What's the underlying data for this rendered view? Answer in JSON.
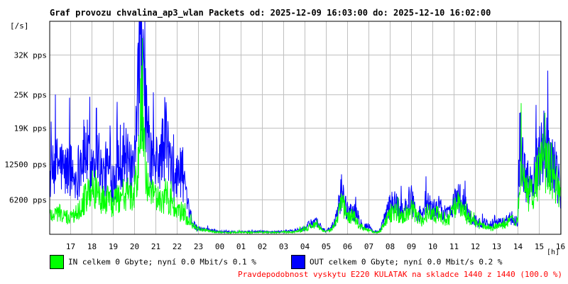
{
  "title": "Graf provozu chvalina_ap3_wlan Packets od: 2025-12-09 16:03:00 do: 2025-12-10 16:02:00",
  "unit_label": "[/s]",
  "hour_unit": "[h]",
  "legend": {
    "in_text": "IN celkem 0 Gbyte; nyní   0.0 Mbit/s 0.1 %",
    "out_text": "OUT celkem 0 Gbyte; nyní   0.0 Mbit/s 0.2 %",
    "in_color": "#00ff00",
    "out_color": "#0000ff"
  },
  "footnote": "Pravdepodobnost vyskytu E220 KULATAK na skladce 1440 z 1440 (100.0 %)",
  "chart_data": {
    "type": "line",
    "ylim": [
      0,
      38000
    ],
    "y_ticks": [
      {
        "value": 6200,
        "label": "6200 pps"
      },
      {
        "value": 12500,
        "label": "12500 pps"
      },
      {
        "value": 19000,
        "label": "19K pps"
      },
      {
        "value": 25000,
        "label": "25K pps"
      },
      {
        "value": 32000,
        "label": "32K pps"
      }
    ],
    "x_range_hours": [
      16.05,
      40.03
    ],
    "x_ticks": [
      {
        "hour": 17,
        "label": "17"
      },
      {
        "hour": 18,
        "label": "18"
      },
      {
        "hour": 19,
        "label": "19"
      },
      {
        "hour": 20,
        "label": "20"
      },
      {
        "hour": 21,
        "label": "21"
      },
      {
        "hour": 22,
        "label": "22"
      },
      {
        "hour": 23,
        "label": "23"
      },
      {
        "hour": 24,
        "label": "00"
      },
      {
        "hour": 25,
        "label": "01"
      },
      {
        "hour": 26,
        "label": "02"
      },
      {
        "hour": 27,
        "label": "03"
      },
      {
        "hour": 28,
        "label": "04"
      },
      {
        "hour": 29,
        "label": "05"
      },
      {
        "hour": 30,
        "label": "06"
      },
      {
        "hour": 31,
        "label": "07"
      },
      {
        "hour": 32,
        "label": "08"
      },
      {
        "hour": 33,
        "label": "09"
      },
      {
        "hour": 34,
        "label": "10"
      },
      {
        "hour": 35,
        "label": "11"
      },
      {
        "hour": 36,
        "label": "12"
      },
      {
        "hour": 37,
        "label": "13"
      },
      {
        "hour": 38,
        "label": "14"
      },
      {
        "hour": 39,
        "label": "15"
      },
      {
        "hour": 40,
        "label": "16"
      }
    ],
    "grid": true,
    "series": [
      {
        "key": "out",
        "color": "#0000ff",
        "x": [
          16.05,
          16.5,
          16.75,
          17.0,
          17.25,
          17.5,
          17.75,
          18.0,
          18.25,
          18.5,
          18.75,
          19.0,
          19.25,
          19.5,
          19.75,
          20.0,
          20.2,
          20.35,
          20.5,
          20.75,
          21.0,
          21.25,
          21.5,
          21.75,
          22.0,
          22.25,
          22.5,
          22.75,
          23.0,
          23.5,
          24.0,
          24.5,
          25.0,
          25.5,
          26.0,
          26.5,
          27.0,
          27.5,
          28.0,
          28.5,
          29.0,
          29.25,
          29.5,
          29.75,
          30.0,
          30.25,
          30.5,
          30.75,
          31.0,
          31.25,
          31.5,
          32.0,
          32.25,
          32.5,
          32.75,
          33.0,
          33.25,
          33.5,
          33.75,
          34.0,
          34.25,
          34.5,
          34.75,
          35.0,
          35.25,
          35.5,
          35.75,
          36.0,
          36.25,
          36.5,
          36.75,
          37.0,
          37.25,
          37.5,
          37.75,
          38.0,
          38.1,
          38.25,
          38.5,
          38.75,
          39.0,
          39.25,
          39.5,
          39.75,
          40.03
        ],
        "y": [
          10000,
          13000,
          11000,
          12000,
          9500,
          13000,
          15000,
          12000,
          17000,
          10000,
          12000,
          9500,
          13000,
          15000,
          12000,
          10000,
          25000,
          33000,
          23000,
          14000,
          12000,
          13500,
          18000,
          11000,
          10000,
          12000,
          5000,
          2000,
          1000,
          800,
          500,
          400,
          500,
          400,
          500,
          400,
          500,
          600,
          1000,
          2500,
          500,
          1000,
          3000,
          8000,
          4000,
          4500,
          3000,
          1500,
          1500,
          500,
          400,
          5000,
          6000,
          4000,
          5000,
          6500,
          4000,
          3500,
          5500,
          4500,
          5000,
          4000,
          3500,
          6000,
          6500,
          5500,
          3000,
          2500,
          2000,
          2000,
          1500,
          2000,
          2000,
          2500,
          3000,
          2500,
          17000,
          12000,
          9000,
          10000,
          15000,
          16000,
          14000,
          12000,
          7500
        ]
      },
      {
        "key": "in",
        "color": "#00ff00",
        "x": [
          16.05,
          16.5,
          16.75,
          17.0,
          17.25,
          17.5,
          17.75,
          18.0,
          18.25,
          18.5,
          18.75,
          19.0,
          19.25,
          19.5,
          19.75,
          20.0,
          20.2,
          20.35,
          20.5,
          20.75,
          21.0,
          21.25,
          21.5,
          21.75,
          22.0,
          22.25,
          22.5,
          22.75,
          23.0,
          23.5,
          24.0,
          24.5,
          25.0,
          25.5,
          26.0,
          26.5,
          27.0,
          27.5,
          28.0,
          28.5,
          29.0,
          29.25,
          29.5,
          29.75,
          30.0,
          30.25,
          30.5,
          30.75,
          31.0,
          31.25,
          31.5,
          32.0,
          32.25,
          32.5,
          32.75,
          33.0,
          33.25,
          33.5,
          33.75,
          34.0,
          34.25,
          34.5,
          34.75,
          35.0,
          35.25,
          35.5,
          35.75,
          36.0,
          36.25,
          36.5,
          36.75,
          37.0,
          37.25,
          37.5,
          37.75,
          38.0,
          38.1,
          38.25,
          38.5,
          38.75,
          39.0,
          39.25,
          39.5,
          39.75,
          40.03
        ],
        "y": [
          3500,
          4000,
          3000,
          3000,
          3500,
          5500,
          6500,
          8000,
          8000,
          6000,
          6500,
          5000,
          6500,
          7500,
          7000,
          6500,
          12000,
          25000,
          13000,
          7000,
          6500,
          6000,
          7000,
          5500,
          4000,
          4000,
          2500,
          1500,
          1000,
          600,
          400,
          300,
          400,
          300,
          400,
          300,
          400,
          400,
          800,
          1800,
          400,
          800,
          2000,
          6000,
          3000,
          3500,
          2000,
          1000,
          800,
          400,
          300,
          3500,
          4500,
          3000,
          3500,
          5000,
          3000,
          2500,
          4000,
          3500,
          3500,
          3000,
          2500,
          4500,
          5500,
          4000,
          2500,
          2000,
          1500,
          1500,
          1000,
          1500,
          1500,
          2000,
          2500,
          2000,
          12000,
          9000,
          7000,
          8000,
          11000,
          13000,
          12000,
          10000,
          6000
        ]
      }
    ]
  }
}
